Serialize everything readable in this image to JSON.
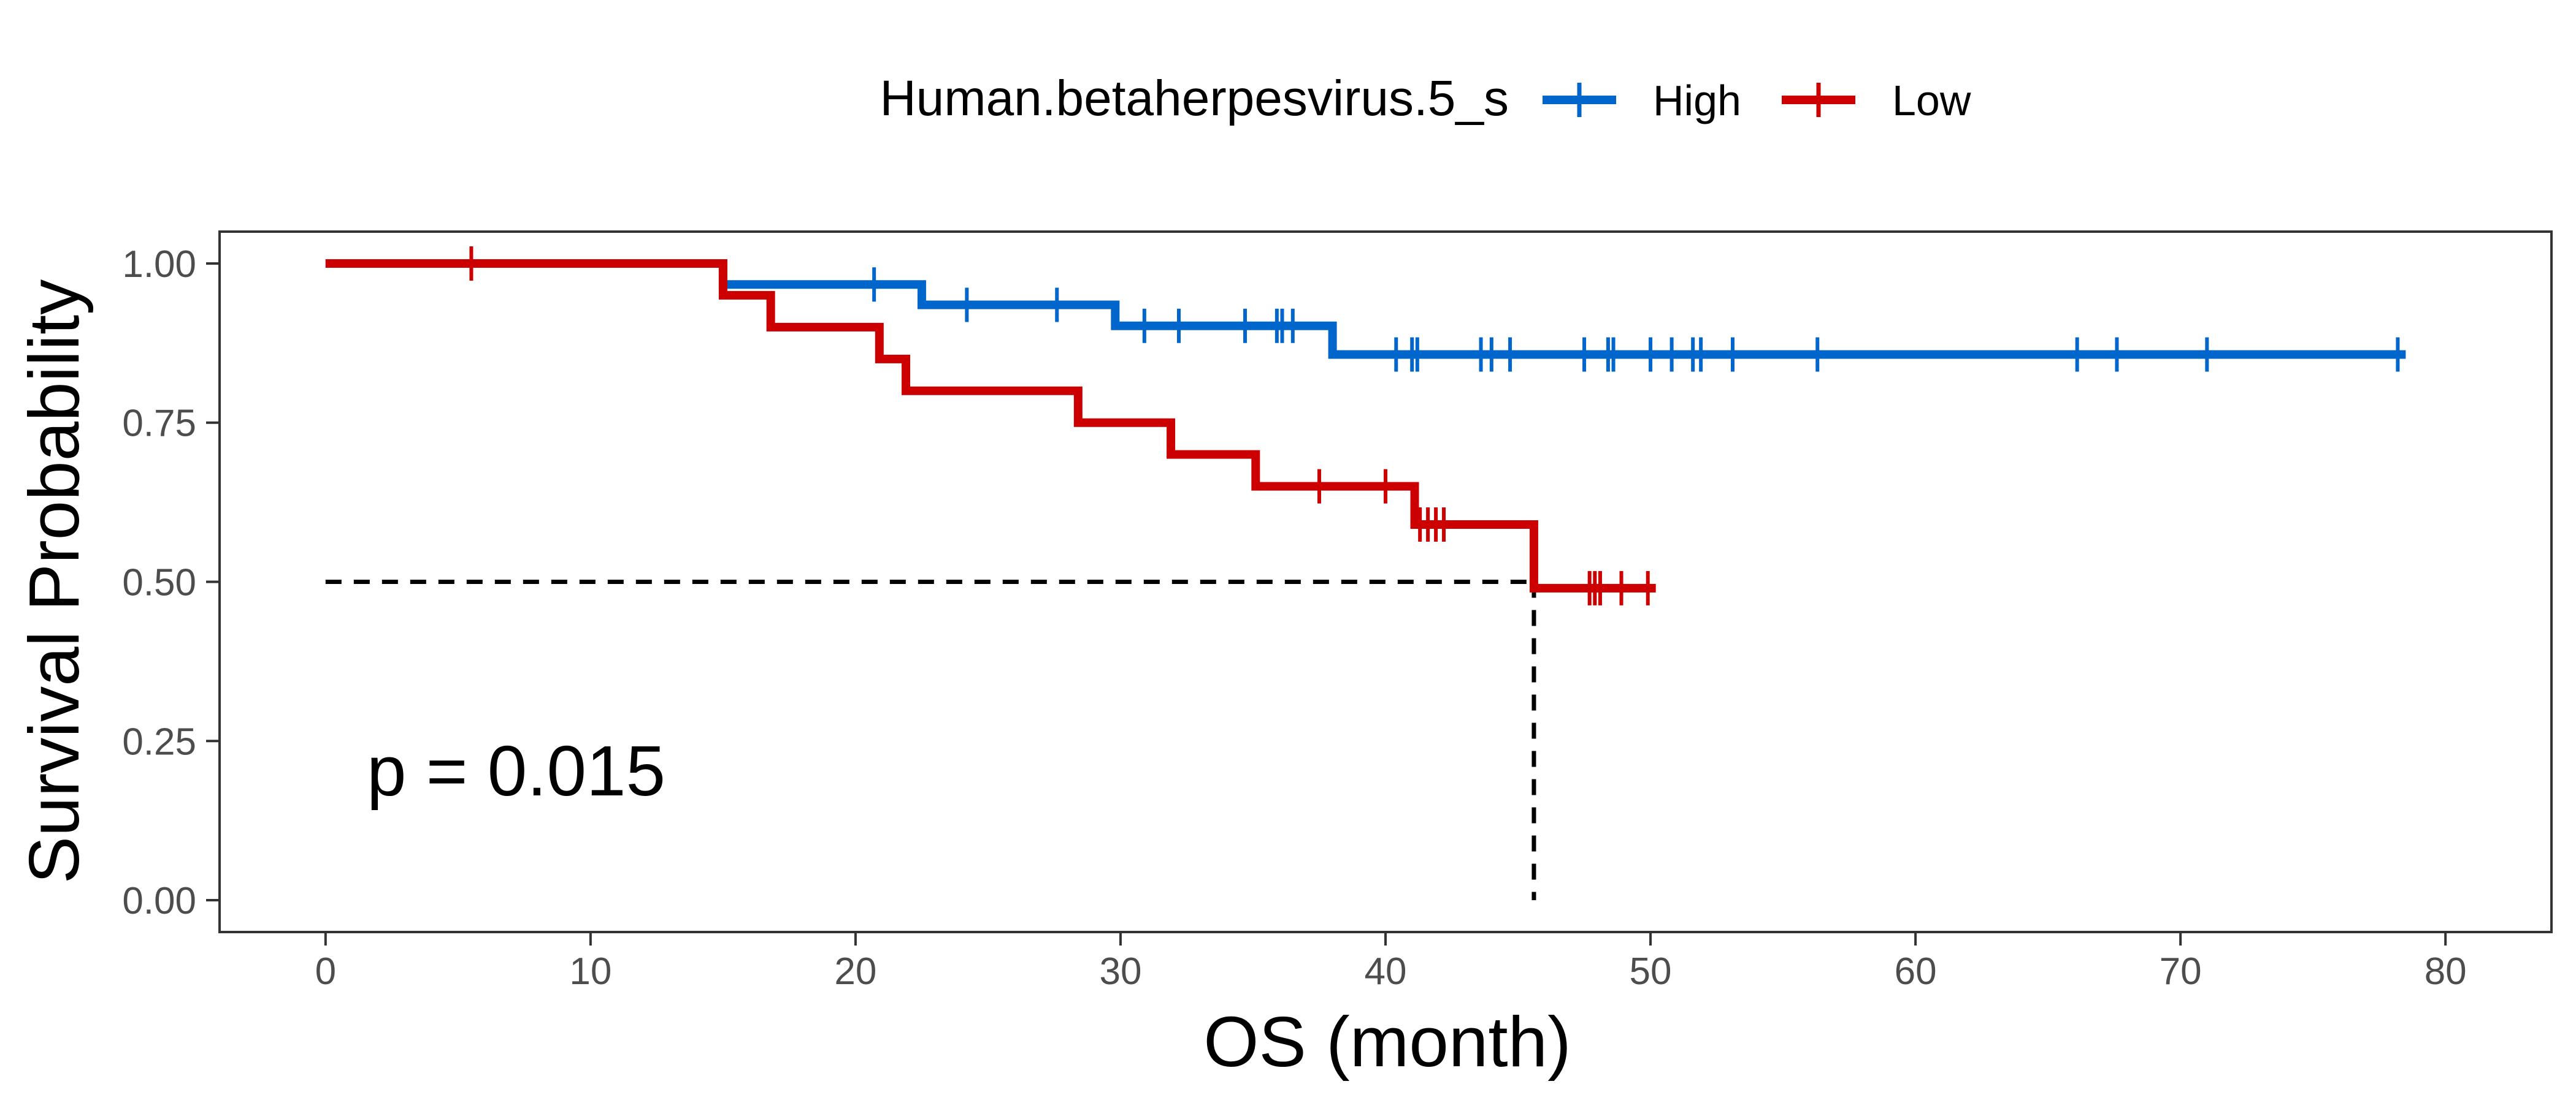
{
  "chart_data": {
    "type": "line",
    "subtype": "kaplan-meier",
    "xlabel": "OS (month)",
    "ylabel": "Survival Probability",
    "xlim": [
      -4,
      84
    ],
    "ylim": [
      -0.05,
      1.05
    ],
    "x_ticks": [
      0,
      10,
      20,
      30,
      40,
      50,
      60,
      70,
      80
    ],
    "y_ticks": [
      0.0,
      0.25,
      0.5,
      0.75,
      1.0
    ],
    "x_tick_labels": [
      "0",
      "10",
      "20",
      "30",
      "40",
      "50",
      "60",
      "70",
      "80"
    ],
    "y_tick_labels": [
      "0.00",
      "0.25",
      "0.50",
      "0.75",
      "1.00"
    ],
    "grid": false,
    "legend": {
      "position": "top",
      "title": "Human.betaherpesvirus.5_s",
      "entries": [
        "High",
        "Low"
      ]
    },
    "annotation": "p = 0.015",
    "median_line": {
      "y": 0.5,
      "x": 45.6,
      "style": "dashed"
    },
    "series": [
      {
        "name": "High",
        "color": "#0066CC",
        "steps": [
          [
            0,
            1.0
          ],
          [
            15.0,
            0.967
          ],
          [
            22.5,
            0.935
          ],
          [
            29.8,
            0.902
          ],
          [
            38.0,
            0.857
          ],
          [
            78.5,
            0.857
          ]
        ],
        "censor_x": [
          20.7,
          24.2,
          27.6,
          30.9,
          32.2,
          34.7,
          35.9,
          36.1,
          36.5,
          40.4,
          41.0,
          41.2,
          43.6,
          44.0,
          44.7,
          47.5,
          48.4,
          48.6,
          50.0,
          50.8,
          51.6,
          51.9,
          53.1,
          56.3,
          66.1,
          67.6,
          71.0,
          78.2
        ]
      },
      {
        "name": "Low",
        "color": "#CC0000",
        "steps": [
          [
            0,
            1.0
          ],
          [
            15.0,
            0.95
          ],
          [
            16.8,
            0.9
          ],
          [
            20.9,
            0.85
          ],
          [
            21.9,
            0.8
          ],
          [
            28.4,
            0.75
          ],
          [
            31.9,
            0.7
          ],
          [
            35.1,
            0.65
          ],
          [
            41.1,
            0.59
          ],
          [
            45.6,
            0.49
          ],
          [
            50.2,
            0.49
          ]
        ],
        "censor_x": [
          5.5,
          37.5,
          40.0,
          41.3,
          41.6,
          41.9,
          42.2,
          47.7,
          47.9,
          48.1,
          48.9,
          49.9
        ]
      }
    ]
  }
}
